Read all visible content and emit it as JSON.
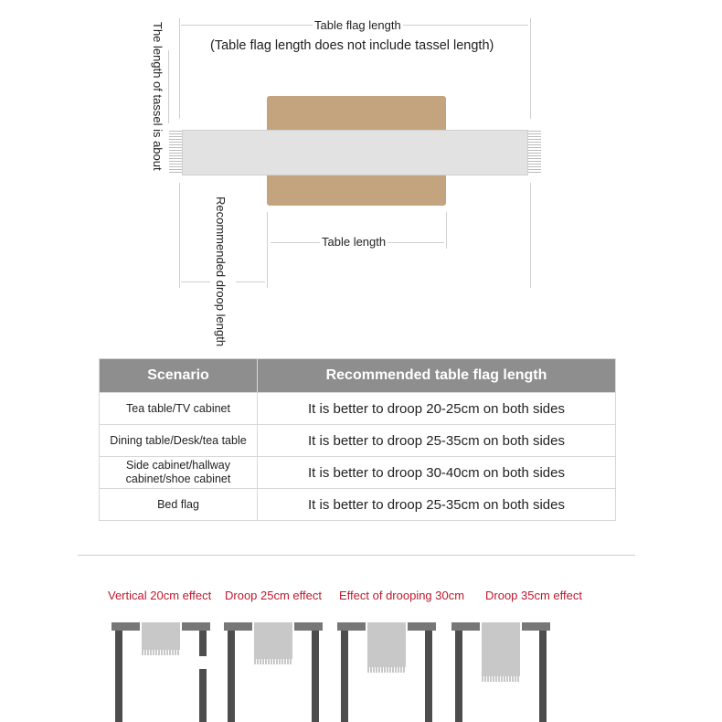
{
  "diagram": {
    "flag_length_label": "Table flag length",
    "flag_length_note": "(Table flag length does not include tassel length)",
    "tassel_label": "The length of tassel is about",
    "droop_label": "Recommended droop length",
    "table_length_label": "Table length",
    "colors": {
      "table": "#c4a47e",
      "runner": "#e2e2e2"
    }
  },
  "recommendation_table": {
    "headers": [
      "Scenario",
      "Recommended table flag length"
    ],
    "rows": [
      {
        "scenario": "Tea table/TV cabinet",
        "recommendation": "It is better to droop 20-25cm on both sides"
      },
      {
        "scenario": "Dining table/Desk/tea table",
        "recommendation": "It is better to droop 25-35cm on both sides"
      },
      {
        "scenario": "Side cabinet/hallway cabinet/shoe cabinet",
        "recommendation": "It is better to droop 30-40cm on both sides"
      },
      {
        "scenario": "Bed flag",
        "recommendation": "It is better to droop 25-35cm on both sides"
      }
    ]
  },
  "effects": {
    "label_color": "#c0182f",
    "items": [
      {
        "label": "Vertical 20cm effect",
        "droop_cm": 20
      },
      {
        "label": "Droop 25cm effect",
        "droop_cm": 25
      },
      {
        "label": "Effect of drooping 30cm",
        "droop_cm": 30
      },
      {
        "label": "Droop 35cm effect",
        "droop_cm": 35
      }
    ]
  }
}
